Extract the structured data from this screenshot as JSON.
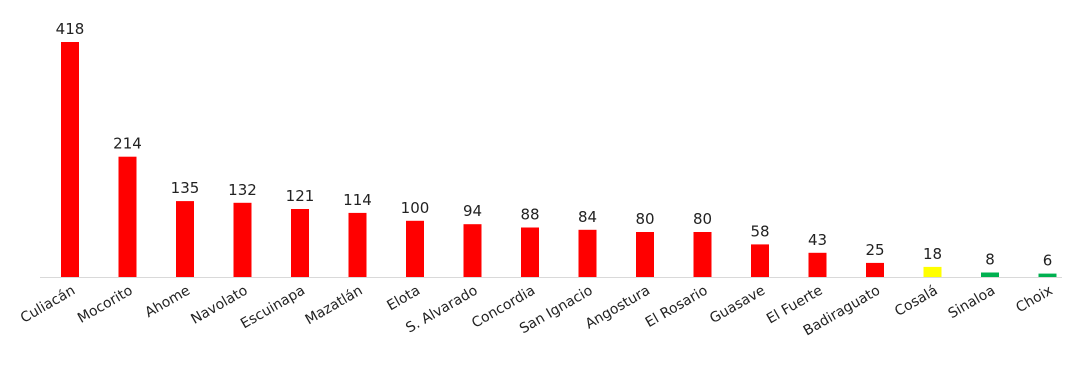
{
  "chart_data": {
    "type": "bar",
    "title": "",
    "xlabel": "",
    "ylabel": "",
    "ylim": [
      0,
      418
    ],
    "grid": false,
    "categories": [
      "Culiacán",
      "Mocorito",
      "Ahome",
      "Navolato",
      "Escuinapa",
      "Mazatlán",
      "Elota",
      "S. Alvarado",
      "Concordia",
      "San Ignacio",
      "Angostura",
      "El Rosario",
      "Guasave",
      "El Fuerte",
      "Badiraguato",
      "Cosalá",
      "Sinaloa",
      "Choix"
    ],
    "values": [
      418,
      214,
      135,
      132,
      121,
      114,
      100,
      94,
      88,
      84,
      80,
      80,
      58,
      43,
      25,
      18,
      8,
      6
    ],
    "bar_colors": [
      "#ff0000",
      "#ff0000",
      "#ff0000",
      "#ff0000",
      "#ff0000",
      "#ff0000",
      "#ff0000",
      "#ff0000",
      "#ff0000",
      "#ff0000",
      "#ff0000",
      "#ff0000",
      "#ff0000",
      "#ff0000",
      "#ff0000",
      "#ffff00",
      "#00b050",
      "#00b050"
    ],
    "axis_color": "#d9d9d9"
  }
}
